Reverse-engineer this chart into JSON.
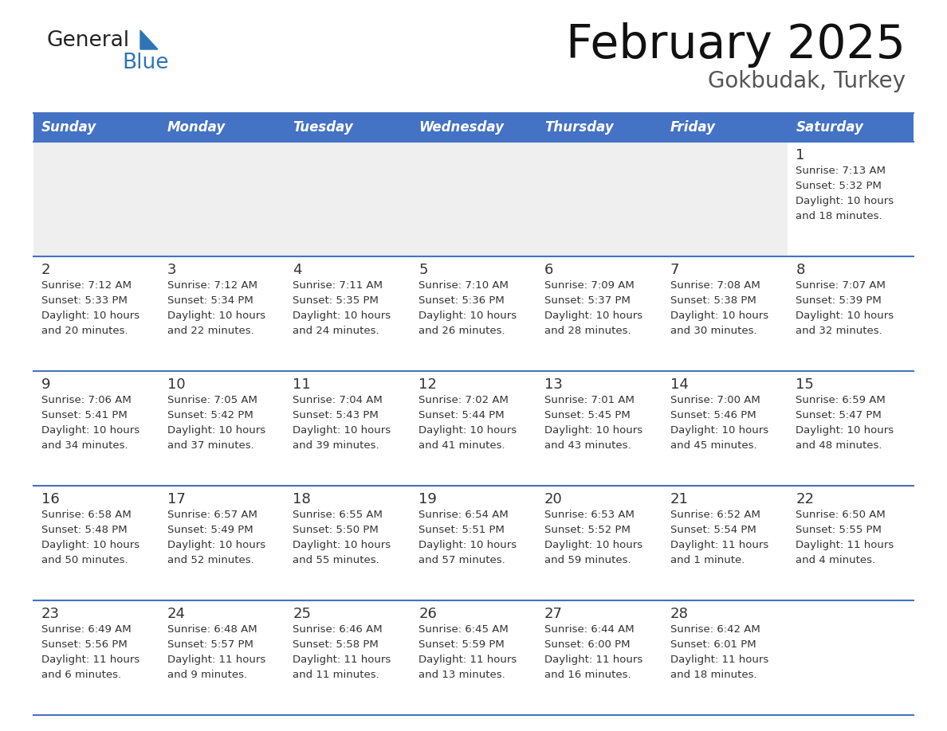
{
  "title": "February 2025",
  "subtitle": "Gokbudak, Turkey",
  "header_bg": "#4472C4",
  "header_text_color": "#FFFFFF",
  "cell_bg_light": "#EFEFEF",
  "cell_bg_white": "#FFFFFF",
  "border_color": "#4472C4",
  "text_color": "#333333",
  "days_of_week": [
    "Sunday",
    "Monday",
    "Tuesday",
    "Wednesday",
    "Thursday",
    "Friday",
    "Saturday"
  ],
  "calendar_data": [
    [
      null,
      null,
      null,
      null,
      null,
      null,
      {
        "day": "1",
        "sunrise": "7:13 AM",
        "sunset": "5:32 PM",
        "daylight": "10 hours",
        "daylight2": "and 18 minutes."
      }
    ],
    [
      {
        "day": "2",
        "sunrise": "7:12 AM",
        "sunset": "5:33 PM",
        "daylight": "10 hours",
        "daylight2": "and 20 minutes."
      },
      {
        "day": "3",
        "sunrise": "7:12 AM",
        "sunset": "5:34 PM",
        "daylight": "10 hours",
        "daylight2": "and 22 minutes."
      },
      {
        "day": "4",
        "sunrise": "7:11 AM",
        "sunset": "5:35 PM",
        "daylight": "10 hours",
        "daylight2": "and 24 minutes."
      },
      {
        "day": "5",
        "sunrise": "7:10 AM",
        "sunset": "5:36 PM",
        "daylight": "10 hours",
        "daylight2": "and 26 minutes."
      },
      {
        "day": "6",
        "sunrise": "7:09 AM",
        "sunset": "5:37 PM",
        "daylight": "10 hours",
        "daylight2": "and 28 minutes."
      },
      {
        "day": "7",
        "sunrise": "7:08 AM",
        "sunset": "5:38 PM",
        "daylight": "10 hours",
        "daylight2": "and 30 minutes."
      },
      {
        "day": "8",
        "sunrise": "7:07 AM",
        "sunset": "5:39 PM",
        "daylight": "10 hours",
        "daylight2": "and 32 minutes."
      }
    ],
    [
      {
        "day": "9",
        "sunrise": "7:06 AM",
        "sunset": "5:41 PM",
        "daylight": "10 hours",
        "daylight2": "and 34 minutes."
      },
      {
        "day": "10",
        "sunrise": "7:05 AM",
        "sunset": "5:42 PM",
        "daylight": "10 hours",
        "daylight2": "and 37 minutes."
      },
      {
        "day": "11",
        "sunrise": "7:04 AM",
        "sunset": "5:43 PM",
        "daylight": "10 hours",
        "daylight2": "and 39 minutes."
      },
      {
        "day": "12",
        "sunrise": "7:02 AM",
        "sunset": "5:44 PM",
        "daylight": "10 hours",
        "daylight2": "and 41 minutes."
      },
      {
        "day": "13",
        "sunrise": "7:01 AM",
        "sunset": "5:45 PM",
        "daylight": "10 hours",
        "daylight2": "and 43 minutes."
      },
      {
        "day": "14",
        "sunrise": "7:00 AM",
        "sunset": "5:46 PM",
        "daylight": "10 hours",
        "daylight2": "and 45 minutes."
      },
      {
        "day": "15",
        "sunrise": "6:59 AM",
        "sunset": "5:47 PM",
        "daylight": "10 hours",
        "daylight2": "and 48 minutes."
      }
    ],
    [
      {
        "day": "16",
        "sunrise": "6:58 AM",
        "sunset": "5:48 PM",
        "daylight": "10 hours",
        "daylight2": "and 50 minutes."
      },
      {
        "day": "17",
        "sunrise": "6:57 AM",
        "sunset": "5:49 PM",
        "daylight": "10 hours",
        "daylight2": "and 52 minutes."
      },
      {
        "day": "18",
        "sunrise": "6:55 AM",
        "sunset": "5:50 PM",
        "daylight": "10 hours",
        "daylight2": "and 55 minutes."
      },
      {
        "day": "19",
        "sunrise": "6:54 AM",
        "sunset": "5:51 PM",
        "daylight": "10 hours",
        "daylight2": "and 57 minutes."
      },
      {
        "day": "20",
        "sunrise": "6:53 AM",
        "sunset": "5:52 PM",
        "daylight": "10 hours",
        "daylight2": "and 59 minutes."
      },
      {
        "day": "21",
        "sunrise": "6:52 AM",
        "sunset": "5:54 PM",
        "daylight": "11 hours",
        "daylight2": "and 1 minute."
      },
      {
        "day": "22",
        "sunrise": "6:50 AM",
        "sunset": "5:55 PM",
        "daylight": "11 hours",
        "daylight2": "and 4 minutes."
      }
    ],
    [
      {
        "day": "23",
        "sunrise": "6:49 AM",
        "sunset": "5:56 PM",
        "daylight": "11 hours",
        "daylight2": "and 6 minutes."
      },
      {
        "day": "24",
        "sunrise": "6:48 AM",
        "sunset": "5:57 PM",
        "daylight": "11 hours",
        "daylight2": "and 9 minutes."
      },
      {
        "day": "25",
        "sunrise": "6:46 AM",
        "sunset": "5:58 PM",
        "daylight": "11 hours",
        "daylight2": "and 11 minutes."
      },
      {
        "day": "26",
        "sunrise": "6:45 AM",
        "sunset": "5:59 PM",
        "daylight": "11 hours",
        "daylight2": "and 13 minutes."
      },
      {
        "day": "27",
        "sunrise": "6:44 AM",
        "sunset": "6:00 PM",
        "daylight": "11 hours",
        "daylight2": "and 16 minutes."
      },
      {
        "day": "28",
        "sunrise": "6:42 AM",
        "sunset": "6:01 PM",
        "daylight": "11 hours",
        "daylight2": "and 18 minutes."
      },
      null
    ]
  ],
  "logo_general_color": "#222222",
  "logo_blue_color": "#2E75B6",
  "figsize": [
    11.88,
    9.18
  ],
  "dpi": 100
}
